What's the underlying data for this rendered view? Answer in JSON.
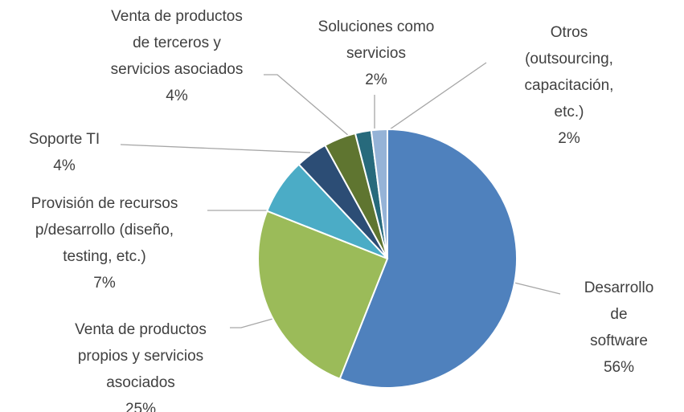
{
  "chart_data": {
    "type": "pie",
    "categories": [
      "Desarrollo de\nsoftware",
      "Venta de productos\npropios y servicios\nasociados",
      "Provisión de recursos\np/desarrollo (diseño,\ntesting, etc.)",
      "Soporte TI",
      "Venta de productos\nde terceros y\nservicios asociados",
      "Soluciones como\nservicios",
      "Otros (outsourcing,\ncapacitación, etc.)"
    ],
    "values": [
      56,
      25,
      7,
      4,
      4,
      2,
      2
    ],
    "value_labels": [
      "56%",
      "25%",
      "7%",
      "4%",
      "4%",
      "2%",
      "2%"
    ],
    "colors": [
      "#4f81bd",
      "#9bbb59",
      "#4bacc6",
      "#2c4d75",
      "#5f7530",
      "#276a7c",
      "#95b3d7"
    ]
  }
}
